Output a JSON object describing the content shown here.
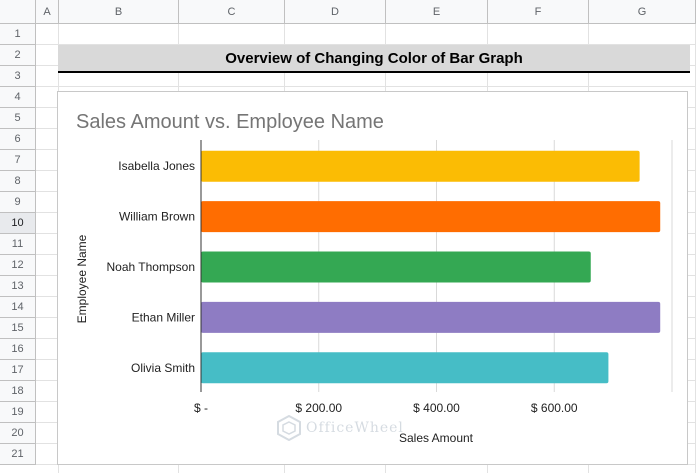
{
  "spreadsheet": {
    "columns": [
      "A",
      "B",
      "C",
      "D",
      "E",
      "F",
      "G"
    ],
    "rows": [
      "1",
      "2",
      "3",
      "4",
      "5",
      "6",
      "7",
      "8",
      "9",
      "10",
      "11",
      "12",
      "13",
      "14",
      "15",
      "16",
      "17",
      "18",
      "19",
      "20",
      "21"
    ],
    "selected_row": "10",
    "banner_title": "Overview of Changing Color of Bar Graph"
  },
  "chart_data": {
    "type": "bar",
    "orientation": "horizontal",
    "title": "Sales Amount vs. Employee Name",
    "xlabel": "Sales Amount",
    "ylabel": "Employee Name",
    "categories": [
      "Isabella Jones",
      "William Brown",
      "Noah Thompson",
      "Ethan Miller",
      "Olivia Smith"
    ],
    "values": [
      745,
      780,
      662,
      780,
      692
    ],
    "colors": [
      "#fbbc04",
      "#ff6d01",
      "#34a853",
      "#8e7cc3",
      "#46bdc6"
    ],
    "x_ticks": [
      "$ -",
      "$ 200.00",
      "$ 400.00",
      "$ 600.00"
    ],
    "x_tick_values": [
      0,
      200,
      400,
      600
    ],
    "xlim": [
      0,
      800
    ],
    "grid": true,
    "legend": "none"
  },
  "watermark": {
    "text": "OfficeWheel",
    "icon": "officewheel-logo-icon"
  }
}
